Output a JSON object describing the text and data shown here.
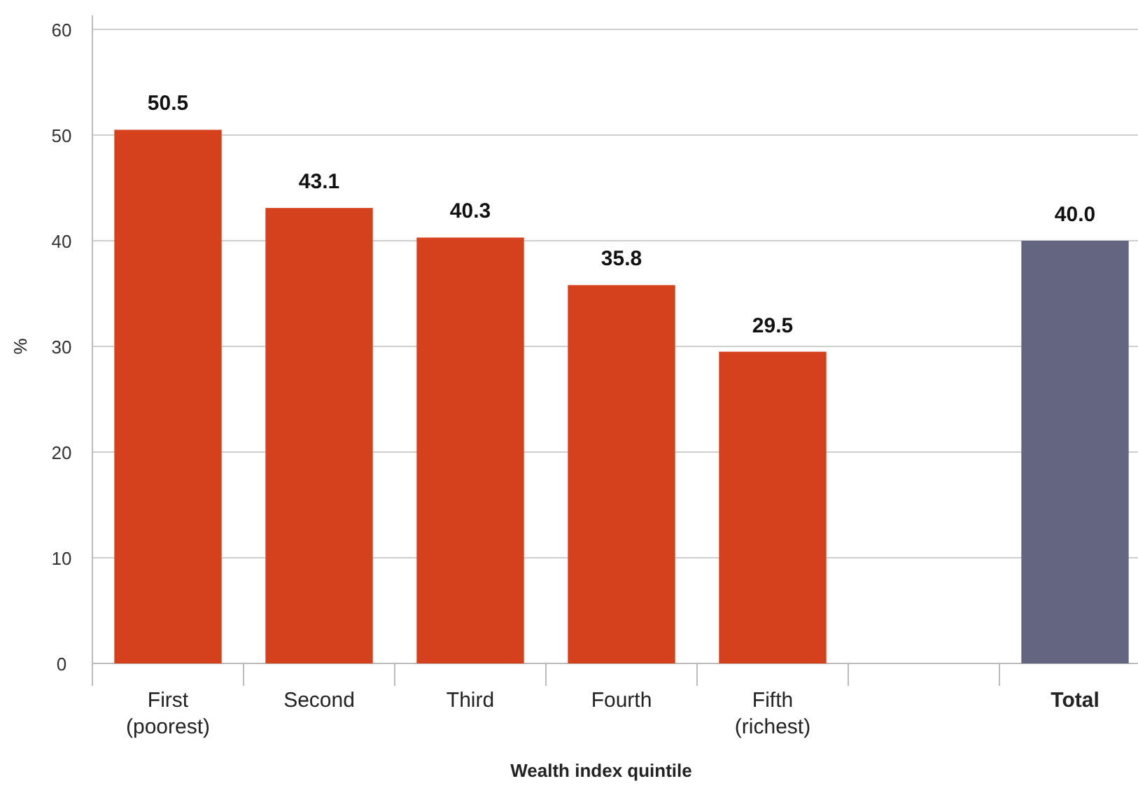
{
  "chart_data": {
    "type": "bar",
    "xlabel": "Wealth index quintile",
    "ylabel": "%",
    "categories": [
      "First\n(poorest)",
      "Second",
      "Third",
      "Fourth",
      "Fifth\n(richest)",
      null,
      "Total"
    ],
    "values": [
      50.5,
      43.1,
      40.3,
      35.8,
      29.5,
      null,
      40.0
    ],
    "value_labels": [
      "50.5",
      "43.1",
      "40.3",
      "35.8",
      "29.5",
      null,
      "40.0"
    ],
    "colors": [
      "#d4411c",
      "#d4411c",
      "#d4411c",
      "#d4411c",
      "#d4411c",
      null,
      "#646580"
    ],
    "ylim": [
      0,
      60
    ],
    "yticks": [
      0,
      10,
      20,
      30,
      40,
      50,
      60
    ],
    "grid": "y"
  }
}
